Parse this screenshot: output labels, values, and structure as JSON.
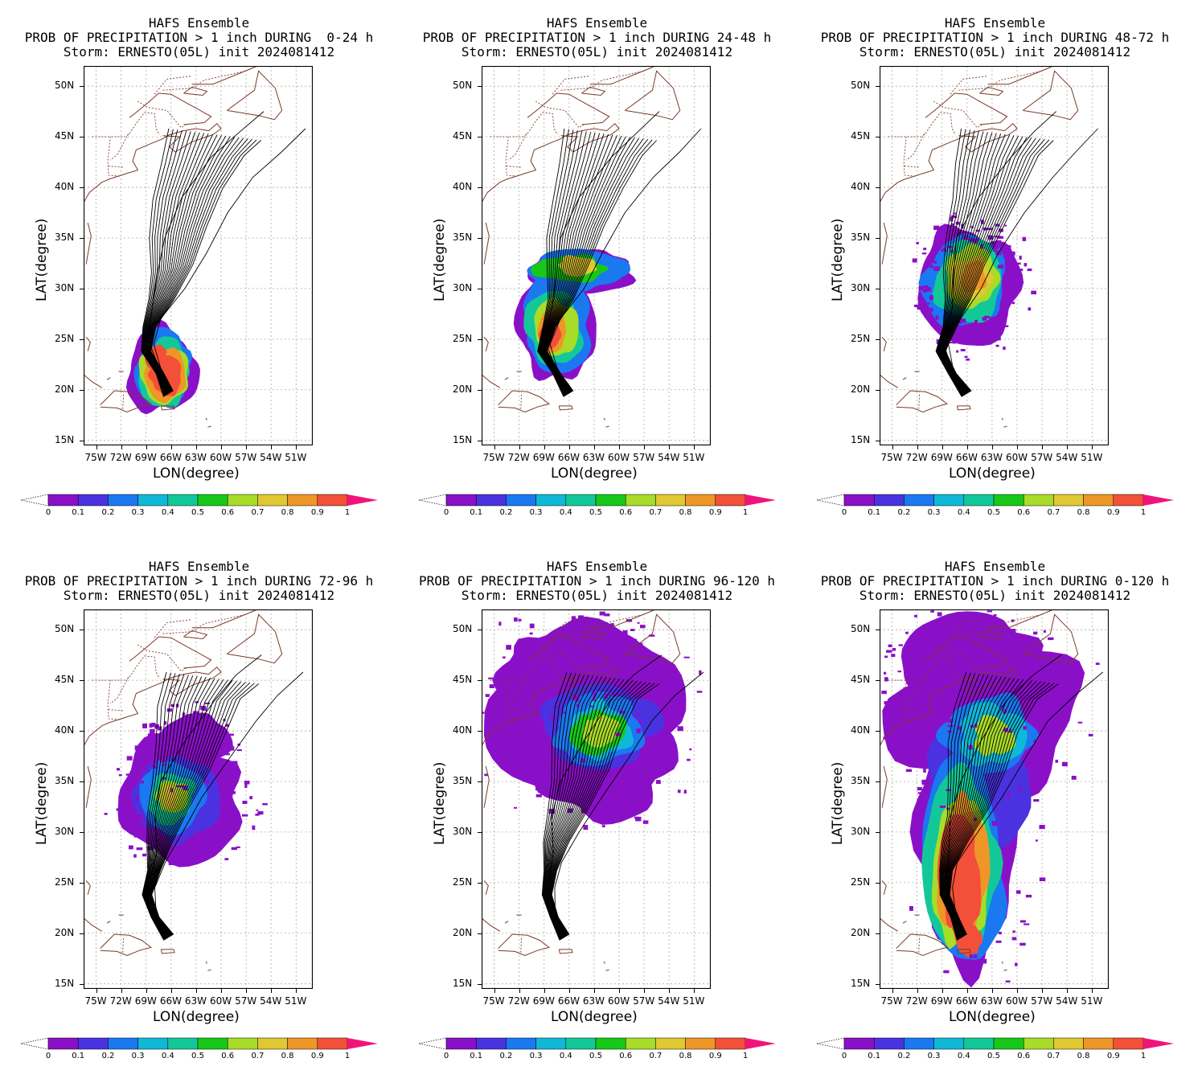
{
  "panels": [
    {
      "title1": "HAFS Ensemble",
      "title2": "PROB OF PRECIPITATION > 1 inch DURING  0-24 h",
      "title3": "Storm: ERNESTO(05L) init 2024081412",
      "mode": "p0"
    },
    {
      "title1": "HAFS Ensemble",
      "title2": "PROB OF PRECIPITATION > 1 inch DURING 24-48 h",
      "title3": "Storm: ERNESTO(05L) init 2024081412",
      "mode": "p1"
    },
    {
      "title1": "HAFS Ensemble",
      "title2": "PROB OF PRECIPITATION > 1 inch DURING 48-72 h",
      "title3": "Storm: ERNESTO(05L) init 2024081412",
      "mode": "p2"
    },
    {
      "title1": "HAFS Ensemble",
      "title2": "PROB OF PRECIPITATION > 1 inch DURING 72-96 h",
      "title3": "Storm: ERNESTO(05L) init 2024081412",
      "mode": "p3"
    },
    {
      "title1": "HAFS Ensemble",
      "title2": "PROB OF PRECIPITATION > 1 inch DURING 96-120 h",
      "title3": "Storm: ERNESTO(05L) init 2024081412",
      "mode": "p4"
    },
    {
      "title1": "HAFS Ensemble",
      "title2": "PROB OF PRECIPITATION > 1 inch DURING 0-120 h",
      "title3": "Storm: ERNESTO(05L) init 2024081412",
      "mode": "p5"
    }
  ],
  "axes": {
    "xlabel": "LON(degree)",
    "ylabel": "LAT(degree)",
    "lat_ticks": [
      "50N",
      "45N",
      "40N",
      "35N",
      "30N",
      "25N",
      "20N",
      "15N"
    ],
    "lon_ticks": [
      "75W",
      "72W",
      "69W",
      "66W",
      "63W",
      "60W",
      "57W",
      "54W",
      "51W"
    ]
  },
  "colorbar": {
    "labels": [
      "0",
      "0.1",
      "0.2",
      "0.3",
      "0.4",
      "0.5",
      "0.6",
      "0.7",
      "0.8",
      "0.9",
      "1"
    ],
    "colors": [
      "#8a10c8",
      "#4a32e0",
      "#1a78f0",
      "#10b8d8",
      "#12c898",
      "#18c818",
      "#a8dc28",
      "#e0c832",
      "#ee9628",
      "#f25038",
      "#f0147a"
    ]
  }
}
